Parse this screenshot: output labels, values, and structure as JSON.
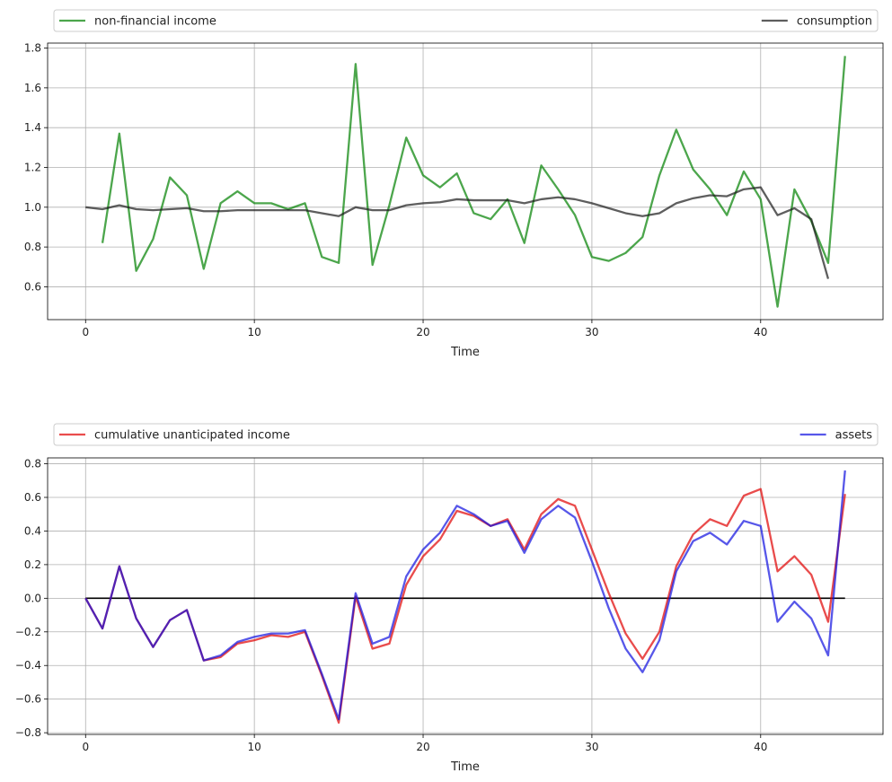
{
  "chart_data": [
    {
      "type": "line",
      "xlabel": "Time",
      "ylabel": "",
      "xlim": [
        -2.25,
        47.25
      ],
      "ylim": [
        0.435,
        1.825
      ],
      "xticks": [
        0,
        10,
        20,
        30,
        40
      ],
      "yticks": [
        0.6,
        0.8,
        1.0,
        1.2,
        1.4,
        1.6,
        1.8
      ],
      "ytick_labels": [
        "0.6",
        "0.8",
        "1.0",
        "1.2",
        "1.4",
        "1.6",
        "1.8"
      ],
      "grid": true,
      "legend_position": "top, outside plot",
      "series": [
        {
          "name": "non-financial income",
          "color": "#008000",
          "x": [
            1,
            2,
            3,
            4,
            5,
            6,
            7,
            8,
            9,
            10,
            11,
            12,
            13,
            14,
            15,
            16,
            17,
            18,
            19,
            20,
            21,
            22,
            23,
            24,
            25,
            26,
            27,
            28,
            29,
            30,
            31,
            32,
            33,
            34,
            35,
            36,
            37,
            38,
            39,
            40,
            41,
            42,
            43,
            44,
            45
          ],
          "values": [
            0.82,
            1.37,
            0.68,
            0.84,
            1.15,
            1.06,
            0.69,
            1.02,
            1.08,
            1.02,
            1.02,
            0.99,
            1.02,
            0.75,
            0.72,
            1.72,
            0.71,
            1.01,
            1.35,
            1.16,
            1.1,
            1.17,
            0.97,
            0.94,
            1.04,
            0.82,
            1.21,
            1.09,
            0.96,
            0.75,
            0.73,
            0.77,
            0.85,
            1.16,
            1.39,
            1.19,
            1.09,
            0.96,
            1.18,
            1.04,
            0.5,
            1.09,
            0.93,
            0.72,
            1.76
          ]
        },
        {
          "name": "consumption",
          "color": "#1a1a1a",
          "x": [
            0,
            1,
            2,
            3,
            4,
            5,
            6,
            7,
            8,
            9,
            10,
            11,
            12,
            13,
            14,
            15,
            16,
            17,
            18,
            19,
            20,
            21,
            22,
            23,
            24,
            25,
            26,
            27,
            28,
            29,
            30,
            31,
            32,
            33,
            34,
            35,
            36,
            37,
            38,
            39,
            40,
            41,
            42,
            43,
            44
          ],
          "values": [
            1.0,
            0.99,
            1.01,
            0.99,
            0.985,
            0.99,
            0.995,
            0.98,
            0.98,
            0.985,
            0.985,
            0.985,
            0.985,
            0.985,
            0.97,
            0.955,
            1.0,
            0.985,
            0.985,
            1.01,
            1.02,
            1.025,
            1.04,
            1.035,
            1.035,
            1.035,
            1.02,
            1.04,
            1.05,
            1.04,
            1.02,
            0.995,
            0.97,
            0.955,
            0.97,
            1.02,
            1.045,
            1.06,
            1.055,
            1.09,
            1.1,
            0.96,
            0.995,
            0.94,
            0.64
          ]
        }
      ]
    },
    {
      "type": "line",
      "xlabel": "Time",
      "ylabel": "",
      "xlim": [
        -2.25,
        47.25
      ],
      "ylim": [
        -0.81,
        0.835
      ],
      "xticks": [
        0,
        10,
        20,
        30,
        40
      ],
      "yticks": [
        -0.8,
        -0.6,
        -0.4,
        -0.2,
        0.0,
        0.2,
        0.4,
        0.6,
        0.8
      ],
      "ytick_labels": [
        "−0.8",
        "−0.6",
        "−0.4",
        "−0.2",
        "0.0",
        "0.2",
        "0.4",
        "0.6",
        "0.8"
      ],
      "grid": true,
      "zero_line": {
        "y": 0,
        "color": "#000000",
        "x_start": 0,
        "x_end": 45
      },
      "legend_position": "top, outside plot",
      "series": [
        {
          "name": "cumulative unanticipated income",
          "color": "#e00000",
          "x": [
            0,
            1,
            2,
            3,
            4,
            5,
            6,
            7,
            8,
            9,
            10,
            11,
            12,
            13,
            14,
            15,
            16,
            17,
            18,
            19,
            20,
            21,
            22,
            23,
            24,
            25,
            26,
            27,
            28,
            29,
            30,
            31,
            32,
            33,
            34,
            35,
            36,
            37,
            38,
            39,
            40,
            41,
            42,
            43,
            44,
            45
          ],
          "values": [
            0,
            -0.18,
            0.19,
            -0.12,
            -0.29,
            -0.13,
            -0.07,
            -0.37,
            -0.35,
            -0.27,
            -0.25,
            -0.22,
            -0.23,
            -0.2,
            -0.46,
            -0.74,
            0.01,
            -0.3,
            -0.27,
            0.08,
            0.25,
            0.35,
            0.52,
            0.49,
            0.43,
            0.47,
            0.29,
            0.5,
            0.59,
            0.55,
            0.29,
            0.03,
            -0.21,
            -0.36,
            -0.2,
            0.19,
            0.38,
            0.47,
            0.43,
            0.61,
            0.65,
            0.16,
            0.25,
            0.14,
            -0.14,
            0.62
          ]
        },
        {
          "name": "assets",
          "color": "#1010e0",
          "x": [
            0,
            1,
            2,
            3,
            4,
            5,
            6,
            7,
            8,
            9,
            10,
            11,
            12,
            13,
            14,
            15,
            16,
            17,
            18,
            19,
            20,
            21,
            22,
            23,
            24,
            25,
            26,
            27,
            28,
            29,
            30,
            31,
            32,
            33,
            34,
            35,
            36,
            37,
            38,
            39,
            40,
            41,
            42,
            43,
            44,
            45
          ],
          "values": [
            0,
            -0.18,
            0.19,
            -0.12,
            -0.29,
            -0.13,
            -0.07,
            -0.37,
            -0.34,
            -0.26,
            -0.23,
            -0.21,
            -0.21,
            -0.19,
            -0.45,
            -0.72,
            0.03,
            -0.27,
            -0.23,
            0.13,
            0.29,
            0.39,
            0.55,
            0.5,
            0.43,
            0.46,
            0.27,
            0.47,
            0.55,
            0.48,
            0.22,
            -0.06,
            -0.3,
            -0.44,
            -0.25,
            0.16,
            0.34,
            0.39,
            0.32,
            0.46,
            0.43,
            -0.14,
            -0.02,
            -0.12,
            -0.34,
            0.76
          ]
        }
      ]
    }
  ]
}
